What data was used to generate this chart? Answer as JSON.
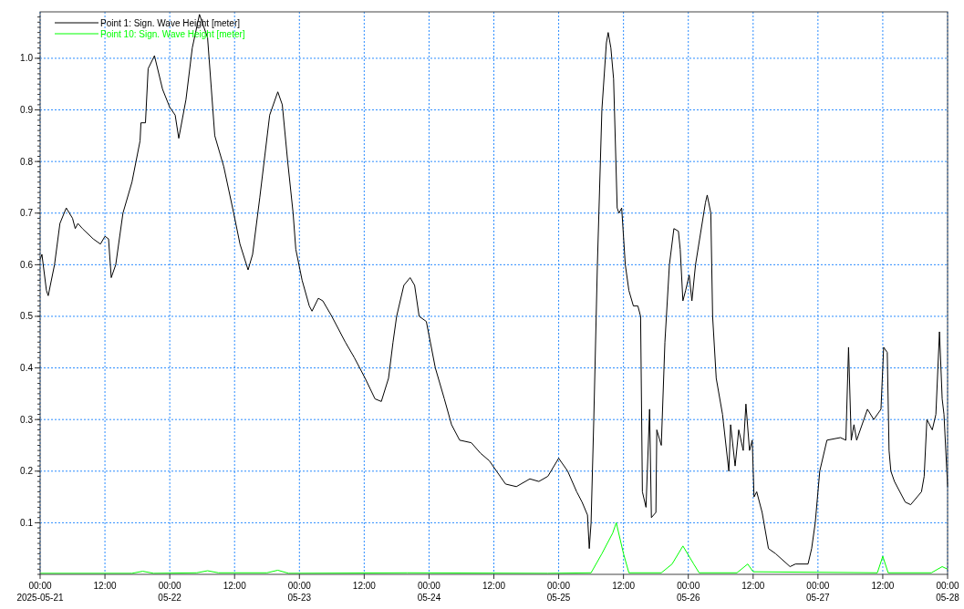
{
  "chart_data": {
    "type": "line",
    "legend": "top left",
    "grid": true,
    "line_style": "solid",
    "marker": "none",
    "ylim": [
      0,
      1.09
    ],
    "yticks": [
      0.1,
      0.2,
      0.3,
      0.4,
      0.5,
      0.6,
      0.7,
      0.8,
      0.9,
      {
        "value": 1.0,
        "label": "1.0"
      }
    ],
    "xlim": [
      "2025-05-21T00:00",
      "2025-05-28T00:00"
    ],
    "xticks": [
      {
        "value": "2025-05-21T00:00",
        "label": "00:00\n2025-05-21"
      },
      {
        "value": "2025-05-21T12:00",
        "label": "12:00"
      },
      {
        "value": "2025-05-22T00:00",
        "label": "00:00\n05-22"
      },
      {
        "value": "2025-05-22T12:00",
        "label": "12:00"
      },
      {
        "value": "2025-05-23T00:00",
        "label": "00:00\n05-23"
      },
      {
        "value": "2025-05-23T12:00",
        "label": "12:00"
      },
      {
        "value": "2025-05-24T00:00",
        "label": "00:00\n05-24"
      },
      {
        "value": "2025-05-24T12:00",
        "label": "12:00"
      },
      {
        "value": "2025-05-25T00:00",
        "label": "00:00\n05-25"
      },
      {
        "value": "2025-05-25T12:00",
        "label": "12:00"
      },
      {
        "value": "2025-05-26T00:00",
        "label": "00:00\n05-26"
      },
      {
        "value": "2025-05-26T12:00",
        "label": "12:00"
      },
      {
        "value": "2025-05-27T00:00",
        "label": "00:00\n05-27"
      },
      {
        "value": "2025-05-27T12:00",
        "label": "12:00"
      },
      {
        "value": "2025-05-28T00:00",
        "label": "00:00\n05-28"
      }
    ],
    "series": [
      {
        "name": "Point 1: Sign. Wave Height [meter]",
        "color": "#000000",
        "x": [
          "2025-05-21T00:00",
          "2025-05-21T00:20",
          "2025-05-21T01:10",
          "2025-05-21T01:30",
          "2025-05-21T02:40",
          "2025-05-21T03:40",
          "2025-05-21T04:50",
          "2025-05-21T06:00",
          "2025-05-21T06:30",
          "2025-05-21T07:00",
          "2025-05-21T07:50",
          "2025-05-21T09:50",
          "2025-05-21T11:10",
          "2025-05-21T12:00",
          "2025-05-21T12:40",
          "2025-05-21T13:10",
          "2025-05-21T14:00",
          "2025-05-21T15:20",
          "2025-05-21T17:00",
          "2025-05-21T18:30",
          "2025-05-21T18:40",
          "2025-05-21T19:30",
          "2025-05-21T20:00",
          "2025-05-21T21:10",
          "2025-05-21T22:40",
          "2025-05-22T00:00",
          "2025-05-22T01:00",
          "2025-05-22T01:40",
          "2025-05-22T03:00",
          "2025-05-22T04:10",
          "2025-05-22T05:30",
          "2025-05-22T07:00",
          "2025-05-22T08:20",
          "2025-05-22T10:00",
          "2025-05-22T11:50",
          "2025-05-22T13:00",
          "2025-05-22T14:30",
          "2025-05-22T15:20",
          "2025-05-22T16:40",
          "2025-05-22T18:30",
          "2025-05-22T20:00",
          "2025-05-22T20:50",
          "2025-05-22T21:50",
          "2025-05-22T22:50",
          "2025-05-22T23:20",
          "2025-05-23T00:30",
          "2025-05-23T01:50",
          "2025-05-23T02:20",
          "2025-05-23T03:30",
          "2025-05-23T04:20",
          "2025-05-23T06:00",
          "2025-05-23T08:30",
          "2025-05-23T10:10",
          "2025-05-23T12:10",
          "2025-05-23T14:00",
          "2025-05-23T15:10",
          "2025-05-23T16:30",
          "2025-05-23T17:20",
          "2025-05-23T18:00",
          "2025-05-23T19:20",
          "2025-05-23T20:30",
          "2025-05-23T21:20",
          "2025-05-23T22:10",
          "2025-05-23T23:30",
          "2025-05-24T01:10",
          "2025-05-24T02:50",
          "2025-05-24T04:10",
          "2025-05-24T05:40",
          "2025-05-24T07:50",
          "2025-05-24T09:30",
          "2025-05-24T11:10",
          "2025-05-24T12:30",
          "2025-05-24T14:10",
          "2025-05-24T16:10",
          "2025-05-24T18:40",
          "2025-05-24T20:20",
          "2025-05-24T22:00",
          "2025-05-25T00:00",
          "2025-05-25T01:40",
          "2025-05-25T03:20",
          "2025-05-25T04:20",
          "2025-05-25T05:20",
          "2025-05-25T05:40",
          "2025-05-25T06:00",
          "2025-05-25T06:30",
          "2025-05-25T07:10",
          "2025-05-25T08:00",
          "2025-05-25T08:50",
          "2025-05-25T09:10",
          "2025-05-25T09:40",
          "2025-05-25T10:10",
          "2025-05-25T10:50",
          "2025-05-25T11:10",
          "2025-05-25T11:40",
          "2025-05-25T12:20",
          "2025-05-25T13:00",
          "2025-05-25T13:50",
          "2025-05-25T14:40",
          "2025-05-25T15:10",
          "2025-05-25T15:30",
          "2025-05-25T16:10",
          "2025-05-25T16:50",
          "2025-05-25T17:10",
          "2025-05-25T18:00",
          "2025-05-25T18:10",
          "2025-05-25T19:00",
          "2025-05-25T19:40",
          "2025-05-25T20:30",
          "2025-05-25T21:20",
          "2025-05-25T22:10",
          "2025-05-25T22:30",
          "2025-05-25T23:00",
          "2025-05-25T23:30",
          "2025-05-26T00:10",
          "2025-05-26T00:40",
          "2025-05-26T01:20",
          "2025-05-26T03:10",
          "2025-05-26T03:30",
          "2025-05-26T04:10",
          "2025-05-26T04:30",
          "2025-05-26T05:10",
          "2025-05-26T06:20",
          "2025-05-26T07:30",
          "2025-05-26T07:50",
          "2025-05-26T08:40",
          "2025-05-26T09:20",
          "2025-05-26T10:10",
          "2025-05-26T10:40",
          "2025-05-26T11:20",
          "2025-05-26T11:50",
          "2025-05-26T12:10",
          "2025-05-26T12:40",
          "2025-05-26T13:40",
          "2025-05-26T14:50",
          "2025-05-26T16:10",
          "2025-05-26T18:50",
          "2025-05-26T19:50",
          "2025-05-26T22:10",
          "2025-05-26T22:50",
          "2025-05-26T23:30",
          "2025-05-27T00:20",
          "2025-05-27T01:40",
          "2025-05-27T04:10",
          "2025-05-27T05:10",
          "2025-05-27T05:40",
          "2025-05-27T06:10",
          "2025-05-27T06:40",
          "2025-05-27T07:10",
          "2025-05-27T09:10",
          "2025-05-27T10:20",
          "2025-05-27T11:40",
          "2025-05-27T12:10",
          "2025-05-27T12:50",
          "2025-05-27T13:10",
          "2025-05-27T13:30",
          "2025-05-27T14:10",
          "2025-05-27T16:10",
          "2025-05-27T17:10",
          "2025-05-27T19:10",
          "2025-05-27T19:40",
          "2025-05-27T20:10",
          "2025-05-27T21:10",
          "2025-05-27T21:50",
          "2025-05-27T22:30",
          "2025-05-27T23:00",
          "2025-05-27T23:20",
          "2025-05-28T00:00"
        ],
        "values": [
          0.61,
          0.62,
          0.55,
          0.54,
          0.6,
          0.68,
          0.71,
          0.69,
          0.67,
          0.68,
          0.67,
          0.65,
          0.64,
          0.655,
          0.65,
          0.575,
          0.6,
          0.7,
          0.76,
          0.84,
          0.875,
          0.875,
          0.98,
          1.005,
          0.94,
          0.905,
          0.89,
          0.845,
          0.92,
          1.02,
          1.085,
          1.04,
          0.85,
          0.79,
          0.7,
          0.64,
          0.59,
          0.62,
          0.73,
          0.89,
          0.935,
          0.91,
          0.8,
          0.7,
          0.63,
          0.57,
          0.52,
          0.51,
          0.535,
          0.53,
          0.5,
          0.45,
          0.42,
          0.38,
          0.34,
          0.335,
          0.38,
          0.45,
          0.5,
          0.56,
          0.575,
          0.56,
          0.5,
          0.49,
          0.4,
          0.34,
          0.29,
          0.26,
          0.255,
          0.235,
          0.22,
          0.2,
          0.175,
          0.17,
          0.185,
          0.18,
          0.19,
          0.225,
          0.2,
          0.16,
          0.14,
          0.115,
          0.05,
          0.1,
          0.3,
          0.6,
          0.9,
          1.03,
          1.05,
          1.02,
          0.96,
          0.71,
          0.7,
          0.71,
          0.6,
          0.55,
          0.52,
          0.52,
          0.5,
          0.16,
          0.13,
          0.32,
          0.11,
          0.12,
          0.28,
          0.25,
          0.45,
          0.6,
          0.67,
          0.665,
          0.63,
          0.53,
          0.55,
          0.58,
          0.53,
          0.6,
          0.72,
          0.735,
          0.7,
          0.5,
          0.38,
          0.31,
          0.2,
          0.29,
          0.21,
          0.28,
          0.24,
          0.33,
          0.24,
          0.26,
          0.15,
          0.16,
          0.12,
          0.05,
          0.04,
          0.015,
          0.02,
          0.02,
          0.05,
          0.1,
          0.2,
          0.26,
          0.265,
          0.26,
          0.44,
          0.26,
          0.29,
          0.26,
          0.32,
          0.3,
          0.32,
          0.44,
          0.43,
          0.24,
          0.2,
          0.18,
          0.14,
          0.135,
          0.16,
          0.19,
          0.3,
          0.28,
          0.31,
          0.47,
          0.34,
          0.31,
          0.17
        ]
      },
      {
        "name": "Point 10: Sign. Wave Height [meter]",
        "color": "#00ff00",
        "x": [
          "2025-05-21T00:00",
          "2025-05-21T17:00",
          "2025-05-21T19:00",
          "2025-05-21T21:00",
          "2025-05-22T05:00",
          "2025-05-22T07:00",
          "2025-05-22T09:00",
          "2025-05-22T18:00",
          "2025-05-22T20:00",
          "2025-05-22T22:00",
          "2025-05-23T20:00",
          "2025-05-24T22:00",
          "2025-05-25T06:00",
          "2025-05-25T08:00",
          "2025-05-25T10:00",
          "2025-05-25T10:40",
          "2025-05-25T12:00",
          "2025-05-25T13:00",
          "2025-05-25T19:00",
          "2025-05-25T21:00",
          "2025-05-25T23:00",
          "2025-05-26T01:00",
          "2025-05-26T02:00",
          "2025-05-26T09:00",
          "2025-05-26T11:00",
          "2025-05-26T12:00",
          "2025-05-27T11:00",
          "2025-05-27T12:00",
          "2025-05-27T13:00",
          "2025-05-27T21:00",
          "2025-05-27T23:00",
          "2025-05-28T00:00"
        ],
        "values": [
          0.002,
          0.002,
          0.006,
          0.002,
          0.003,
          0.007,
          0.003,
          0.003,
          0.008,
          0.002,
          0.003,
          0.002,
          0.003,
          0.04,
          0.08,
          0.1,
          0.04,
          0.003,
          0.003,
          0.02,
          0.055,
          0.02,
          0.003,
          0.003,
          0.02,
          0.005,
          0.003,
          0.035,
          0.003,
          0.003,
          0.015,
          0.01
        ]
      }
    ]
  }
}
